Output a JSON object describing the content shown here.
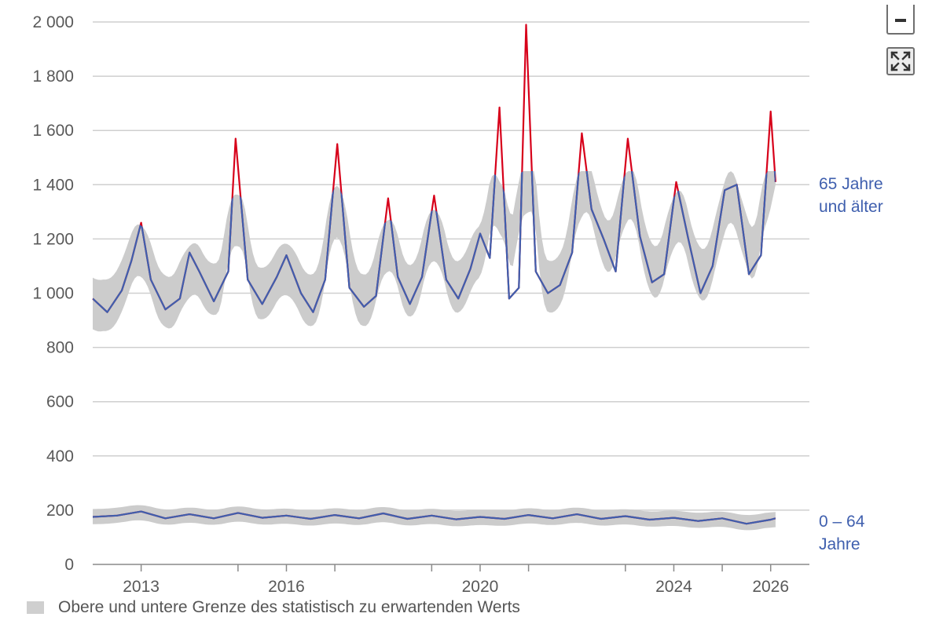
{
  "controls": {
    "zoom_out_icon": "minus-icon",
    "fullscreen_icon": "fullscreen-icon"
  },
  "legend": {
    "band_label": "Obere und untere Grenze des statistisch zu erwartenden Werts"
  },
  "colors": {
    "above_band": "#d7001a",
    "line": "#3f5fae",
    "band": "#cccccc",
    "grid": "#cfcfcf",
    "axis": "#8a8a8a"
  },
  "chart_data": {
    "type": "line",
    "title": "",
    "xlabel": "",
    "ylabel": "",
    "xlim": [
      2012.0,
      2026.8
    ],
    "ylim": [
      0,
      2000
    ],
    "grid": true,
    "y_ticks": [
      0,
      200,
      400,
      600,
      800,
      1000,
      1200,
      1400,
      1600,
      1800,
      2000
    ],
    "y_tick_labels": [
      "0",
      "200",
      "400",
      "600",
      "800",
      "1 000",
      "1 200",
      "1 400",
      "1 600",
      "1 800",
      "2 000"
    ],
    "x_ticks": [
      2013,
      2016,
      2020,
      2024,
      2026
    ],
    "x_tick_labels": [
      "2013",
      "2016",
      "2020",
      "2024",
      "2026"
    ],
    "minor_x_ticks": [
      2015,
      2017,
      2019,
      2021,
      2023,
      2025
    ],
    "series": [
      {
        "name": "65 Jahre und älter",
        "label_lines": [
          "65 Jahre",
          "und älter"
        ],
        "x": [
          2012.0,
          2012.3,
          2012.6,
          2012.8,
          2013.0,
          2013.2,
          2013.5,
          2013.8,
          2014.0,
          2014.2,
          2014.5,
          2014.8,
          2014.95,
          2015.2,
          2015.5,
          2015.8,
          2016.0,
          2016.3,
          2016.55,
          2016.8,
          2017.05,
          2017.3,
          2017.6,
          2017.85,
          2018.1,
          2018.3,
          2018.55,
          2018.8,
          2019.05,
          2019.3,
          2019.55,
          2019.8,
          2020.0,
          2020.2,
          2020.4,
          2020.6,
          2020.8,
          2020.95,
          2021.15,
          2021.4,
          2021.65,
          2021.9,
          2022.1,
          2022.3,
          2022.55,
          2022.8,
          2023.05,
          2023.3,
          2023.55,
          2023.8,
          2024.05,
          2024.3,
          2024.55,
          2024.8,
          2025.05,
          2025.3,
          2025.55,
          2025.8,
          2026.0,
          2026.1
        ],
        "values": [
          980,
          930,
          1010,
          1120,
          1260,
          1050,
          940,
          980,
          1150,
          1080,
          970,
          1080,
          1570,
          1050,
          960,
          1060,
          1140,
          1000,
          930,
          1050,
          1550,
          1020,
          950,
          990,
          1350,
          1060,
          960,
          1060,
          1360,
          1050,
          980,
          1090,
          1220,
          1130,
          1685,
          980,
          1020,
          1990,
          1080,
          1000,
          1030,
          1150,
          1590,
          1310,
          1200,
          1080,
          1570,
          1210,
          1040,
          1070,
          1410,
          1200,
          1000,
          1100,
          1380,
          1400,
          1070,
          1140,
          1670,
          1410
        ]
      },
      {
        "name": "0 – 64 Jahre",
        "label_lines": [
          "0 – 64",
          "Jahre"
        ],
        "x": [
          2012.0,
          2012.5,
          2013.0,
          2013.5,
          2014.0,
          2014.5,
          2015.0,
          2015.5,
          2016.0,
          2016.5,
          2017.0,
          2017.5,
          2018.0,
          2018.5,
          2019.0,
          2019.5,
          2020.0,
          2020.5,
          2021.0,
          2021.5,
          2022.0,
          2022.5,
          2023.0,
          2023.5,
          2024.0,
          2024.5,
          2025.0,
          2025.5,
          2026.0,
          2026.1
        ],
        "values": [
          175,
          180,
          195,
          170,
          185,
          170,
          190,
          172,
          180,
          168,
          182,
          170,
          188,
          168,
          180,
          166,
          175,
          168,
          182,
          170,
          185,
          168,
          178,
          165,
          172,
          160,
          170,
          150,
          165,
          170
        ]
      }
    ]
  }
}
